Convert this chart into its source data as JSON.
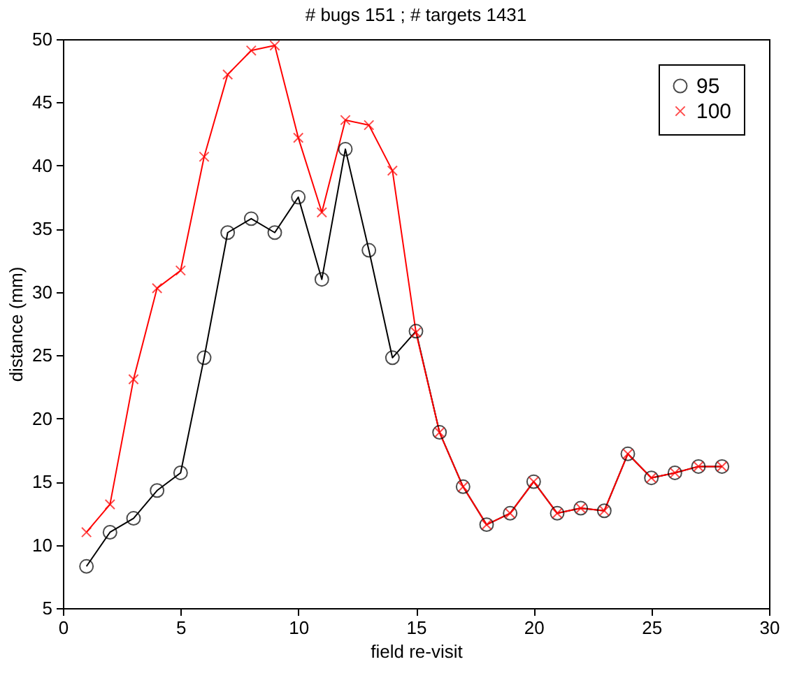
{
  "chart_data": {
    "type": "line",
    "title": "# bugs 151 ; # targets 1431",
    "xlabel": "field re-visit",
    "ylabel": "distance (mm)",
    "x": [
      1,
      2,
      3,
      4,
      5,
      6,
      7,
      8,
      9,
      10,
      11,
      12,
      13,
      14,
      15,
      16,
      17,
      18,
      19,
      20,
      21,
      22,
      23,
      24,
      25,
      26,
      27,
      28
    ],
    "series": [
      {
        "name": "95",
        "color": "#000000",
        "marker": "circle",
        "values": [
          8.3,
          11.0,
          12.1,
          14.3,
          15.7,
          24.8,
          34.7,
          35.8,
          34.7,
          37.5,
          31.0,
          41.3,
          33.3,
          24.8,
          26.9,
          18.9,
          14.6,
          11.6,
          12.5,
          15.0,
          12.5,
          12.9,
          12.7,
          17.2,
          15.3,
          15.7,
          16.2,
          16.2
        ]
      },
      {
        "name": "100",
        "color": "#ff0000",
        "marker": "cross",
        "values": [
          11.0,
          13.2,
          23.1,
          30.3,
          31.7,
          40.7,
          47.2,
          49.1,
          49.5,
          42.2,
          36.3,
          43.6,
          43.2,
          39.6,
          26.8,
          18.9,
          14.6,
          11.6,
          12.5,
          15.0,
          12.5,
          12.9,
          12.7,
          17.2,
          15.3,
          15.7,
          16.2,
          16.2
        ]
      }
    ],
    "xlim": [
      0,
      30
    ],
    "xticks": [
      0,
      5,
      10,
      15,
      20,
      25,
      30
    ],
    "ylim": [
      5,
      50
    ],
    "yticks": [
      5,
      10,
      15,
      20,
      25,
      30,
      35,
      40,
      45,
      50
    ],
    "grid": false,
    "legend": "top right",
    "line_style": "solid"
  }
}
